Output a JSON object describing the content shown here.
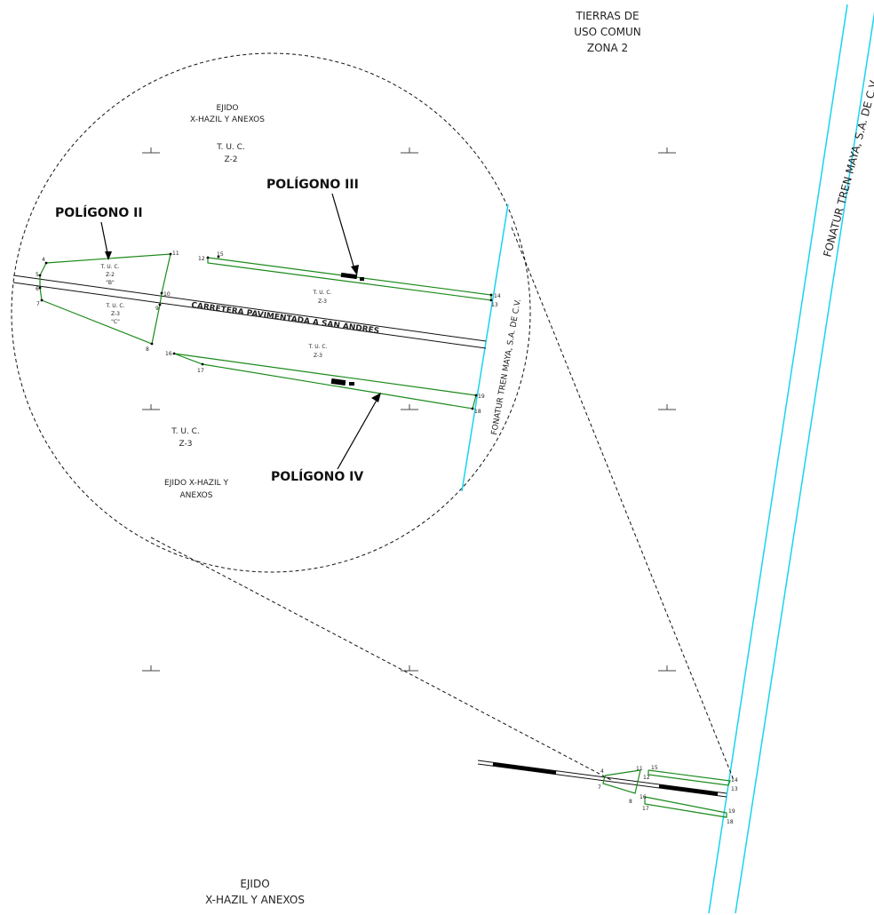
{
  "map": {
    "top_zone": [
      "TIERRAS DE",
      "USO COMUN",
      "ZONA 2"
    ],
    "right_label": "FONATUR TREN MAYA, S.A. DE C.V.",
    "bottom_ejido": [
      "EJIDO",
      "X-HAZIL Y ANEXOS"
    ],
    "inset": {
      "ejido_top": [
        "EJIDO",
        "X-HAZIL Y ANEXOS"
      ],
      "tuc_top": [
        "T. U. C.",
        "Z-2"
      ],
      "tuc_bottom": [
        "T. U. C.",
        "Z-3"
      ],
      "ejido_bottom": [
        "EJIDO X-HAZIL Y",
        "ANEXOS"
      ],
      "poligono_ii": "POLÍGONO    II",
      "poligono_iii": "POLÍGONO III",
      "poligono_iv": "POLÍGONO IV",
      "fonatur_label": "FONATUR TREN MAYA, S.A. DE C.V.",
      "carretera_label": "CARRETERA  PAVIMENTADA A SAN ANDRES",
      "poly_b": [
        "T. U. C.",
        "Z-2",
        "\"B\""
      ],
      "poly_c": [
        "T. U. C.",
        "Z-3",
        "\"C\""
      ],
      "poly_iii_lbl": [
        "T. U. C.",
        "Z-3"
      ],
      "poly_iv_lbl": [
        "T. U. C.",
        "Z-3"
      ],
      "points": [
        "4",
        "5",
        "6",
        "7",
        "8",
        "9",
        "10",
        "11",
        "12",
        "13",
        "14",
        "15",
        "16",
        "17",
        "18",
        "19"
      ]
    },
    "small_points": [
      "4",
      "7",
      "8",
      "11",
      "12",
      "15",
      "16",
      "17",
      "14",
      "13",
      "19",
      "18"
    ],
    "colors": {
      "polygon": "#1a8a1a",
      "tren_maya_line": "#19d3f0",
      "road": "#000000"
    }
  }
}
